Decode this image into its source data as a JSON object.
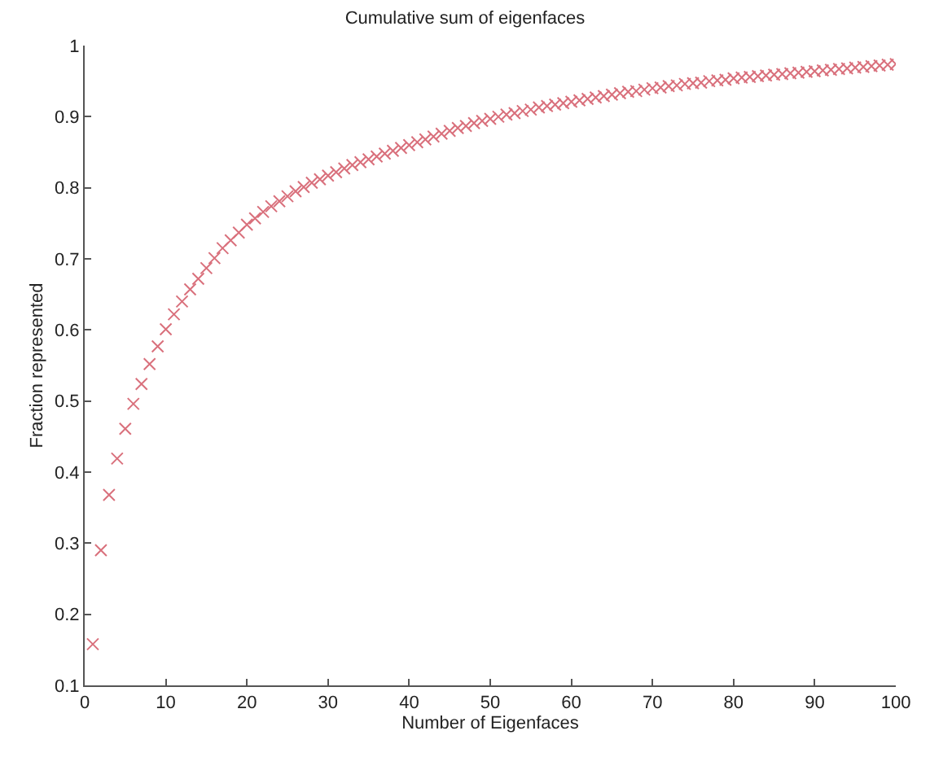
{
  "chart_data": {
    "type": "scatter",
    "title": "Cumulative sum of eigenfaces",
    "xlabel": "Number of Eigenfaces",
    "ylabel": "Fraction represented",
    "x": [
      1,
      2,
      3,
      4,
      5,
      6,
      7,
      8,
      9,
      10,
      11,
      12,
      13,
      14,
      15,
      16,
      17,
      18,
      19,
      20,
      21,
      22,
      23,
      24,
      25,
      26,
      27,
      28,
      29,
      30,
      31,
      32,
      33,
      34,
      35,
      36,
      37,
      38,
      39,
      40,
      41,
      42,
      43,
      44,
      45,
      46,
      47,
      48,
      49,
      50,
      51,
      52,
      53,
      54,
      55,
      56,
      57,
      58,
      59,
      60,
      61,
      62,
      63,
      64,
      65,
      66,
      67,
      68,
      69,
      70,
      71,
      72,
      73,
      74,
      75,
      76,
      77,
      78,
      79,
      80,
      81,
      82,
      83,
      84,
      85,
      86,
      87,
      88,
      89,
      90,
      91,
      92,
      93,
      94,
      95,
      96,
      97,
      98,
      99,
      100
    ],
    "series": [
      {
        "color": "#d9707c",
        "values": [
          0.158,
          0.29,
          0.368,
          0.419,
          0.461,
          0.496,
          0.524,
          0.552,
          0.577,
          0.601,
          0.622,
          0.64,
          0.657,
          0.672,
          0.687,
          0.701,
          0.715,
          0.726,
          0.737,
          0.748,
          0.757,
          0.766,
          0.774,
          0.781,
          0.788,
          0.795,
          0.801,
          0.807,
          0.812,
          0.817,
          0.822,
          0.827,
          0.832,
          0.836,
          0.84,
          0.844,
          0.848,
          0.852,
          0.856,
          0.86,
          0.864,
          0.868,
          0.872,
          0.876,
          0.88,
          0.884,
          0.887,
          0.891,
          0.894,
          0.897,
          0.9,
          0.903,
          0.905,
          0.908,
          0.91,
          0.913,
          0.915,
          0.917,
          0.919,
          0.921,
          0.923,
          0.925,
          0.927,
          0.929,
          0.931,
          0.933,
          0.935,
          0.936,
          0.938,
          0.94,
          0.941,
          0.943,
          0.944,
          0.946,
          0.947,
          0.948,
          0.95,
          0.951,
          0.952,
          0.954,
          0.955,
          0.956,
          0.957,
          0.958,
          0.959,
          0.96,
          0.961,
          0.962,
          0.963,
          0.964,
          0.965,
          0.966,
          0.967,
          0.968,
          0.969,
          0.97,
          0.971,
          0.972,
          0.973,
          0.974
        ]
      }
    ],
    "xlim": [
      0,
      100
    ],
    "xticks": [
      0,
      10,
      20,
      30,
      40,
      50,
      60,
      70,
      80,
      90,
      100
    ],
    "ylim": [
      0.1,
      1
    ],
    "yticks": [
      0.1,
      0.2,
      0.3,
      0.4,
      0.5,
      0.6,
      0.7,
      0.8,
      0.9,
      1
    ],
    "marker": "cross"
  }
}
